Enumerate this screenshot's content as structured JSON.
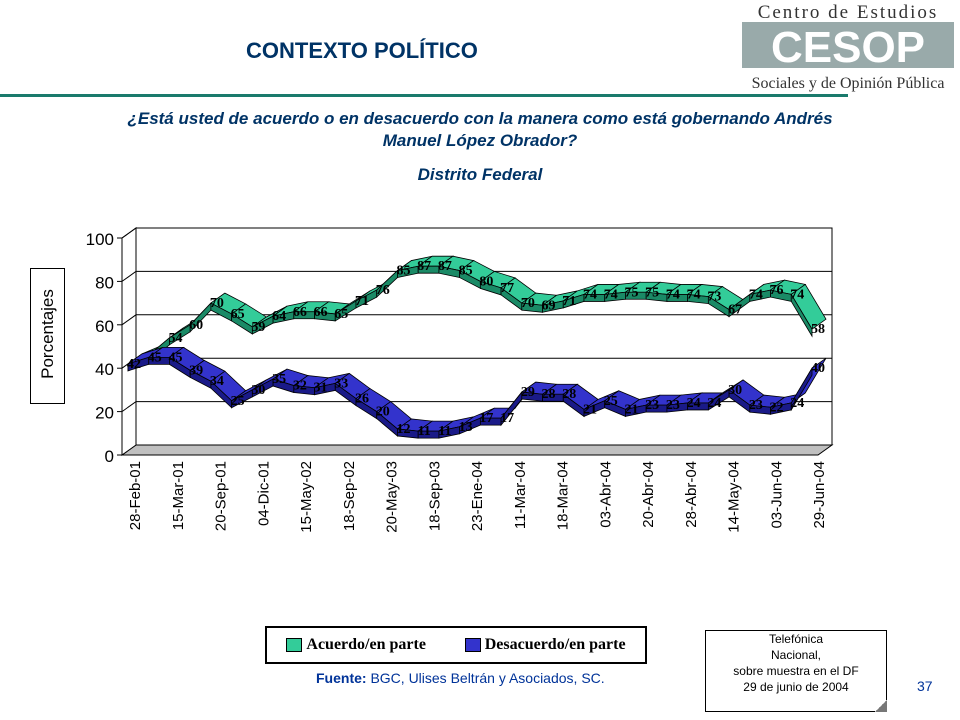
{
  "header": {
    "title": "CONTEXTO POLÍTICO",
    "logo_line1": "Centro de Estudios",
    "logo_mark": "CESOP",
    "logo_line2": "Sociales y de Opinión Pública"
  },
  "question": "¿Está usted de acuerdo o en desacuerdo con la manera como está gobernando Andrés Manuel López Obrador?",
  "subtitle": "Distrito Federal",
  "colors": {
    "acuerdo": "#33cc99",
    "desacuerdo": "#3333cc",
    "title": "#003366",
    "rule": "#1a7a6c"
  },
  "chart_data": {
    "type": "area",
    "title": "",
    "xlabel": "",
    "ylabel": "Porcentajes",
    "ylim": [
      0,
      100
    ],
    "yticks": [
      0,
      20,
      40,
      60,
      80,
      100
    ],
    "grid": true,
    "legend_position": "bottom",
    "x_tick_labels": [
      "28-Feb-01",
      "15-Mar-01",
      "20-Sep-01",
      "04-Dic-01",
      "15-May-02",
      "18-Sep-02",
      "20-May-03",
      "18-Sep-03",
      "23-Ene-04",
      "11-Mar-04",
      "18-Mar-04",
      "03-Abr-04",
      "20-Abr-04",
      "28-Abr-04",
      "14-May-04",
      "03-Jun-04",
      "29-Jun-04"
    ],
    "series": [
      {
        "name": "Acuerdo/en parte",
        "values": [
          42,
          46,
          54,
          60,
          70,
          65,
          59,
          64,
          66,
          66,
          65,
          71,
          76,
          85,
          87,
          87,
          85,
          80,
          77,
          70,
          69,
          71,
          74,
          74,
          75,
          75,
          74,
          74,
          73,
          67,
          74,
          76,
          74,
          58
        ]
      },
      {
        "name": "Desacuerdo/en parte",
        "values": [
          42,
          45,
          45,
          39,
          34,
          25,
          30,
          35,
          32,
          31,
          33,
          26,
          20,
          12,
          11,
          11,
          13,
          17,
          17,
          29,
          28,
          28,
          21,
          25,
          21,
          23,
          23,
          24,
          24,
          30,
          23,
          22,
          24,
          40
        ]
      }
    ]
  },
  "legend": {
    "item1": "Acuerdo/en parte",
    "item2": "Desacuerdo/en parte"
  },
  "source": {
    "label": "Fuente:",
    "text": " BGC, Ulises Beltrán y Asociados, SC."
  },
  "note": {
    "line1": "Telefónica",
    "line2": "Nacional,",
    "line3": "sobre muestra en el DF",
    "line4": "29 de junio de 2004"
  },
  "page_number": "37"
}
